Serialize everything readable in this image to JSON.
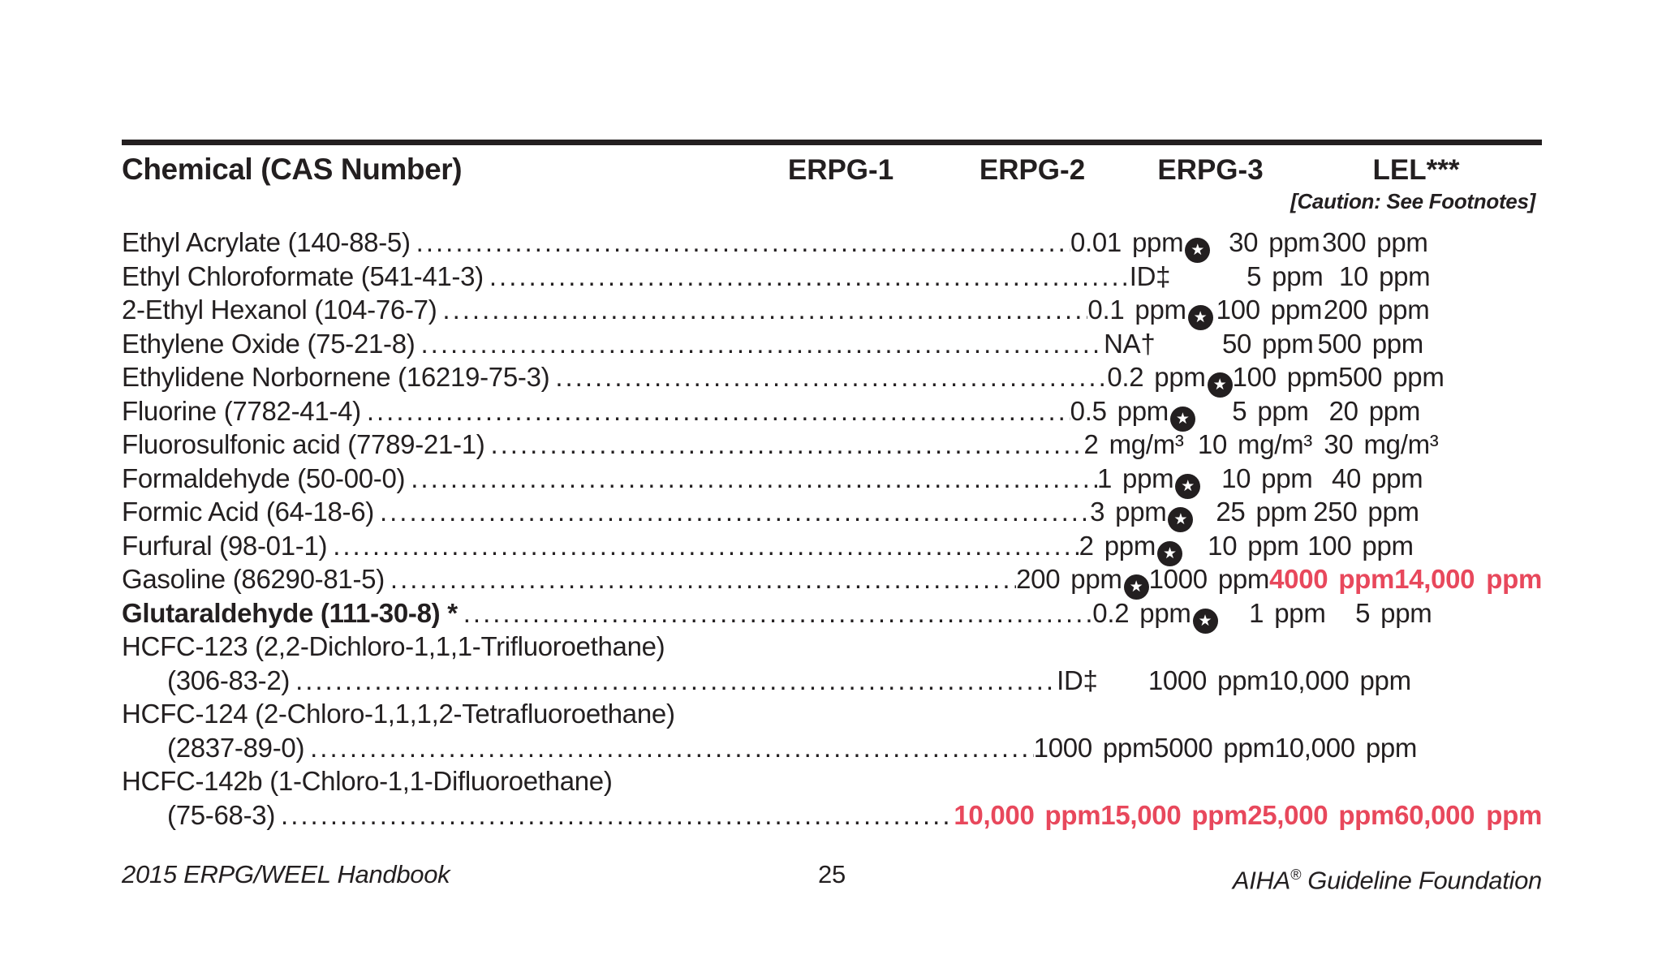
{
  "colors": {
    "text": "#231f20",
    "accent_red": "#e8485c"
  },
  "icons": {
    "footnote_star": "★"
  },
  "table": {
    "columns": {
      "chemical": "Chemical (CAS Number)",
      "erpg1": "ERPG-1",
      "erpg2": "ERPG-2",
      "erpg3": "ERPG-3",
      "lel": "LEL***"
    },
    "caution": "[Caution: See Footnotes]",
    "rows": [
      {
        "name": "Ethyl Acrylate (140-88-5)",
        "leader": true,
        "erpg1": {
          "value": "0.01",
          "unit": "ppm",
          "star": true
        },
        "erpg2": {
          "value": "30",
          "unit": "ppm"
        },
        "erpg3": {
          "value": "300",
          "unit": "ppm"
        }
      },
      {
        "name": "Ethyl Chloroformate (541-41-3)",
        "leader": true,
        "erpg1": {
          "value": "ID‡",
          "unit": ""
        },
        "erpg2": {
          "value": "5",
          "unit": "ppm"
        },
        "erpg3": {
          "value": "10",
          "unit": "ppm"
        }
      },
      {
        "name": "2-Ethyl Hexanol (104-76-7)",
        "leader": true,
        "erpg1": {
          "value": "0.1",
          "unit": "ppm",
          "star": true
        },
        "erpg2": {
          "value": "100",
          "unit": "ppm"
        },
        "erpg3": {
          "value": "200",
          "unit": "ppm"
        }
      },
      {
        "name": "Ethylene Oxide (75-21-8)",
        "leader": true,
        "erpg1": {
          "value": "NA†",
          "unit": ""
        },
        "erpg2": {
          "value": "50",
          "unit": "ppm"
        },
        "erpg3": {
          "value": "500",
          "unit": "ppm"
        }
      },
      {
        "name": "Ethylidene Norbornene (16219-75-3)",
        "leader": true,
        "erpg1": {
          "value": "0.2",
          "unit": "ppm",
          "star": true
        },
        "erpg2": {
          "value": "100",
          "unit": "ppm"
        },
        "erpg3": {
          "value": "500",
          "unit": "ppm"
        }
      },
      {
        "name": "Fluorine (7782-41-4)",
        "leader": true,
        "erpg1": {
          "value": "0.5",
          "unit": "ppm",
          "star": true
        },
        "erpg2": {
          "value": "5",
          "unit": "ppm"
        },
        "erpg3": {
          "value": "20",
          "unit": "ppm"
        }
      },
      {
        "name": "Fluorosulfonic acid (7789-21-1)",
        "leader": true,
        "erpg1": {
          "value": "2",
          "unit": "mg/m³"
        },
        "erpg2": {
          "value": "10",
          "unit": "mg/m³"
        },
        "erpg3": {
          "value": "30",
          "unit": "mg/m³"
        }
      },
      {
        "name": "Formaldehyde (50-00-0)",
        "leader": true,
        "erpg1": {
          "value": "1",
          "unit": "ppm",
          "star": true
        },
        "erpg2": {
          "value": "10",
          "unit": "ppm"
        },
        "erpg3": {
          "value": "40",
          "unit": "ppm"
        }
      },
      {
        "name": "Formic Acid (64-18-6)",
        "leader": true,
        "erpg1": {
          "value": "3",
          "unit": "ppm",
          "star": true
        },
        "erpg2": {
          "value": "25",
          "unit": "ppm"
        },
        "erpg3": {
          "value": "250",
          "unit": "ppm"
        }
      },
      {
        "name": "Furfural (98-01-1)",
        "leader": true,
        "erpg1": {
          "value": "2",
          "unit": "ppm",
          "star": true
        },
        "erpg2": {
          "value": "10",
          "unit": "ppm"
        },
        "erpg3": {
          "value": "100",
          "unit": "ppm"
        }
      },
      {
        "name": "Gasoline (86290-81-5)",
        "leader": true,
        "erpg1": {
          "value": "200",
          "unit": "ppm",
          "star": true
        },
        "erpg2": {
          "value": "1000",
          "unit": "ppm"
        },
        "erpg3": {
          "value": "4000",
          "unit": "ppm",
          "red": true
        },
        "lel": {
          "value": "14,000",
          "unit": "ppm",
          "red": true
        }
      },
      {
        "name": "Glutaraldehyde (111-30-8) *",
        "leader": true,
        "name_bold": true,
        "erpg1": {
          "value": "0.2",
          "unit": "ppm",
          "star": true
        },
        "erpg2": {
          "value": "1",
          "unit": "ppm"
        },
        "erpg3": {
          "value": "5",
          "unit": "ppm"
        }
      },
      {
        "name": "HCFC-123 (2,2-Dichloro-1,1,1-Trifluoroethane)",
        "leader": false
      },
      {
        "name": "(306-83-2)",
        "leader": true,
        "indent": true,
        "erpg1": {
          "value": "ID‡",
          "unit": ""
        },
        "erpg2": {
          "value": "1000",
          "unit": "ppm"
        },
        "erpg3": {
          "value": "10,000",
          "unit": "ppm"
        }
      },
      {
        "name": "HCFC-124 (2-Chloro-1,1,1,2-Tetrafluoroethane)",
        "leader": false
      },
      {
        "name": "(2837-89-0)",
        "leader": true,
        "indent": true,
        "erpg1": {
          "value": "1000",
          "unit": "ppm"
        },
        "erpg2": {
          "value": "5000",
          "unit": "ppm"
        },
        "erpg3": {
          "value": "10,000",
          "unit": "ppm"
        }
      },
      {
        "name": "HCFC-142b (1-Chloro-1,1-Difluoroethane)",
        "leader": false
      },
      {
        "name": "(75-68-3)",
        "leader": true,
        "indent": true,
        "erpg1": {
          "value": "10,000",
          "unit": "ppm",
          "red": true
        },
        "erpg2": {
          "value": "15,000",
          "unit": "ppm",
          "red": true
        },
        "erpg3": {
          "value": "25,000",
          "unit": "ppm",
          "red": true
        },
        "lel": {
          "value": "60,000",
          "unit": "ppm",
          "red": true
        }
      }
    ]
  },
  "footer": {
    "left": "2015 ERPG/WEEL Handbook",
    "page_number": "25",
    "right_pre": "AIHA",
    "right_sup": "®",
    "right_post": " Guideline Foundation"
  }
}
